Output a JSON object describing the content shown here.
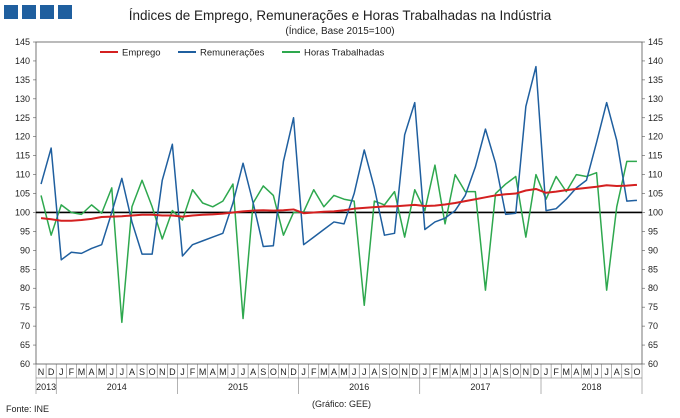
{
  "chart_data": {
    "type": "line",
    "title": "Índices de Emprego, Remunerações e Horas Trabalhadas na Indústria",
    "subtitle": "(Índice, Base 2015=100)",
    "ylim": [
      60,
      145
    ],
    "yticks": [
      60,
      65,
      70,
      75,
      80,
      85,
      90,
      95,
      100,
      105,
      110,
      115,
      120,
      125,
      130,
      135,
      140,
      145
    ],
    "reference_line": 100,
    "month_labels": [
      "N",
      "D",
      "J",
      "F",
      "M",
      "A",
      "M",
      "J",
      "J",
      "A",
      "S",
      "O",
      "N",
      "D",
      "J",
      "F",
      "M",
      "A",
      "M",
      "J",
      "J",
      "A",
      "S",
      "O",
      "N",
      "D",
      "J",
      "F",
      "M",
      "A",
      "M",
      "J",
      "J",
      "A",
      "S",
      "O",
      "N",
      "D",
      "J",
      "F",
      "M",
      "A",
      "M",
      "J",
      "J",
      "A",
      "S",
      "O",
      "N",
      "D",
      "J",
      "F",
      "M",
      "A",
      "M",
      "J",
      "J",
      "A",
      "S",
      "O"
    ],
    "year_groups": [
      {
        "label": "2013",
        "start": 0,
        "end": 1
      },
      {
        "label": "2014",
        "start": 2,
        "end": 13
      },
      {
        "label": "2015",
        "start": 14,
        "end": 25
      },
      {
        "label": "2016",
        "start": 26,
        "end": 37
      },
      {
        "label": "2017",
        "start": 38,
        "end": 49
      },
      {
        "label": "2018",
        "start": 50,
        "end": 59
      }
    ],
    "series": [
      {
        "name": "Emprego",
        "color": "#d42020",
        "values": [
          98.5,
          98.2,
          97.8,
          97.8,
          98.0,
          98.3,
          98.8,
          98.9,
          99.0,
          99.2,
          99.4,
          99.4,
          99.2,
          99.2,
          98.9,
          99.2,
          99.4,
          99.5,
          99.7,
          100.0,
          100.3,
          100.5,
          100.6,
          100.5,
          100.6,
          100.8,
          99.8,
          100.0,
          100.2,
          100.3,
          100.6,
          101.0,
          101.2,
          101.4,
          101.6,
          101.6,
          101.8,
          102.0,
          101.7,
          101.8,
          102.1,
          102.5,
          103.0,
          103.5,
          104.0,
          104.5,
          104.8,
          105.0,
          105.8,
          106.2,
          105.2,
          105.5,
          105.9,
          106.2,
          106.5,
          106.8,
          107.2,
          107.0,
          107.1,
          107.3
        ]
      },
      {
        "name": "Remunerações",
        "color": "#1f5f9f",
        "values": [
          107.5,
          117.0,
          87.5,
          89.5,
          89.2,
          90.5,
          91.5,
          100.0,
          109.0,
          97.5,
          89.0,
          89.0,
          108.5,
          118.0,
          88.5,
          91.5,
          92.5,
          93.5,
          94.5,
          102.5,
          113.0,
          102.5,
          91.0,
          91.2,
          113.5,
          125.0,
          91.5,
          93.5,
          95.5,
          97.5,
          97.0,
          105.0,
          116.5,
          106.5,
          94.0,
          94.5,
          120.5,
          129.0,
          95.5,
          97.5,
          98.5,
          100.5,
          104.5,
          112.0,
          122.0,
          113.0,
          99.5,
          99.8,
          128.0,
          138.5,
          100.5,
          101.0,
          103.5,
          106.5,
          108.5,
          118.5,
          129.0,
          119.0,
          103.0,
          103.2
        ]
      },
      {
        "name": "Horas Trabalhadas",
        "color": "#2ea84e",
        "values": [
          104.5,
          94.0,
          102.0,
          100.0,
          99.5,
          102.0,
          99.8,
          106.5,
          71.0,
          101.5,
          108.5,
          101.5,
          93.0,
          100.5,
          98.0,
          106.0,
          102.5,
          101.5,
          103.0,
          107.5,
          72.0,
          102.5,
          107.0,
          104.5,
          94.0,
          100.0,
          100.2,
          106.0,
          101.5,
          104.5,
          103.5,
          103.0,
          75.5,
          103.0,
          102.0,
          105.5,
          93.5,
          106.0,
          100.5,
          112.5,
          97.0,
          110.0,
          105.5,
          105.5,
          79.5,
          105.0,
          107.5,
          109.5,
          93.5,
          110.0,
          103.5,
          109.5,
          105.5,
          110.0,
          109.5,
          110.5,
          79.5,
          101.5,
          113.5,
          113.5
        ]
      }
    ]
  },
  "footer": {
    "source": "Fonte: INE",
    "credit": "(Gráfico: GEE)"
  }
}
